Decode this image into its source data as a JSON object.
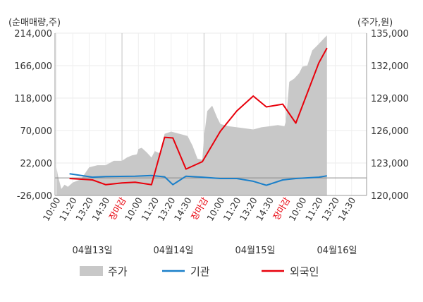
{
  "chart_data": {
    "type": "line",
    "left_axis_unit": "(순매매량,주)",
    "right_axis_unit": "(주가,원)",
    "left_ticks": [
      "214,000",
      "166,000",
      "118,000",
      "70,000",
      "22,000",
      "-26,000"
    ],
    "right_ticks": [
      "135,000",
      "132,000",
      "129,000",
      "126,000",
      "123,000",
      "120,000"
    ],
    "left_ylim": [
      -26000,
      214000
    ],
    "right_ylim": [
      120000,
      135000
    ],
    "x_tick_labels": [
      "10:00",
      "11:20",
      "13:20",
      "14:30",
      "장마감",
      "10:00",
      "11:20",
      "13:20",
      "14:30",
      "장마감",
      "10:00",
      "11:20",
      "13:20",
      "14:30",
      "장마감",
      "10:00",
      "11:20",
      "13:20",
      "14:30"
    ],
    "dates": [
      "04월13일",
      "04월14일",
      "04월15일",
      "04월16일"
    ],
    "legend": [
      {
        "name": "주가",
        "color": "#c8c8c8"
      },
      {
        "name": "기관",
        "color": "#1a7fc9"
      },
      {
        "name": "외국인",
        "color": "#e8000b"
      }
    ],
    "series": [
      {
        "name": "주가",
        "axis": "right",
        "color": "#c8c8c8",
        "x": [
          0,
          0.1,
          0.3,
          0.5,
          0.7,
          1.0,
          1.5,
          2.0,
          2.5,
          3.0,
          3.5,
          4.0,
          4.3,
          4.6,
          4.9,
          4.95,
          5.0,
          5.2,
          5.5,
          5.8,
          6.0,
          6.3,
          6.6,
          7.0,
          7.5,
          8.0,
          8.3,
          8.6,
          8.9,
          9.0,
          9.2,
          9.5,
          9.8,
          10.0,
          10.5,
          11.0,
          11.5,
          12.0,
          12.5,
          13.0,
          13.5,
          13.9,
          14.0,
          14.2,
          14.5,
          14.8,
          15.0,
          15.3,
          15.6,
          16.0,
          16.3,
          16.5
        ],
        "y": [
          122.6,
          121.8,
          120.6,
          121.0,
          120.8,
          121.2,
          121.5,
          122.6,
          122.8,
          122.8,
          123.2,
          123.2,
          123.5,
          123.7,
          123.8,
          124.0,
          124.3,
          124.4,
          124.0,
          123.5,
          124.1,
          123.9,
          125.7,
          125.9,
          125.7,
          125.5,
          124.6,
          123.4,
          123.3,
          125.4,
          127.8,
          128.3,
          127.2,
          126.6,
          126.4,
          126.3,
          126.2,
          126.1,
          126.3,
          126.4,
          126.5,
          126.4,
          126.9,
          130.5,
          130.8,
          131.3,
          131.9,
          132.0,
          133.4,
          134.0,
          134.5,
          134.8
        ]
      },
      {
        "name": "기관",
        "axis": "left",
        "color": "#1a7fc9",
        "x": [
          0.8,
          2.2,
          3.0,
          4.8,
          5.8,
          6.6,
          7.1,
          7.9,
          8.9,
          10.0,
          11.0,
          12.0,
          12.8,
          13.8,
          14.6,
          16.0,
          16.5
        ],
        "y": [
          6000,
          1000,
          2000,
          2500,
          3500,
          1500,
          -10000,
          2500,
          1000,
          -1000,
          -1000,
          -5000,
          -11000,
          -3000,
          -1000,
          1000,
          3000
        ]
      },
      {
        "name": "외국인",
        "axis": "left",
        "color": "#e8000b",
        "x": [
          0.8,
          2.2,
          3.0,
          4.0,
          4.8,
          5.8,
          6.6,
          7.1,
          7.9,
          8.9,
          10.0,
          11.0,
          12.0,
          12.8,
          13.8,
          14.6,
          16.0,
          16.5
        ],
        "y": [
          -1000,
          -3000,
          -10000,
          -7500,
          -6500,
          -10000,
          60000,
          59000,
          13000,
          24000,
          69000,
          99000,
          121000,
          105000,
          109000,
          81000,
          170000,
          192000
        ]
      }
    ]
  }
}
